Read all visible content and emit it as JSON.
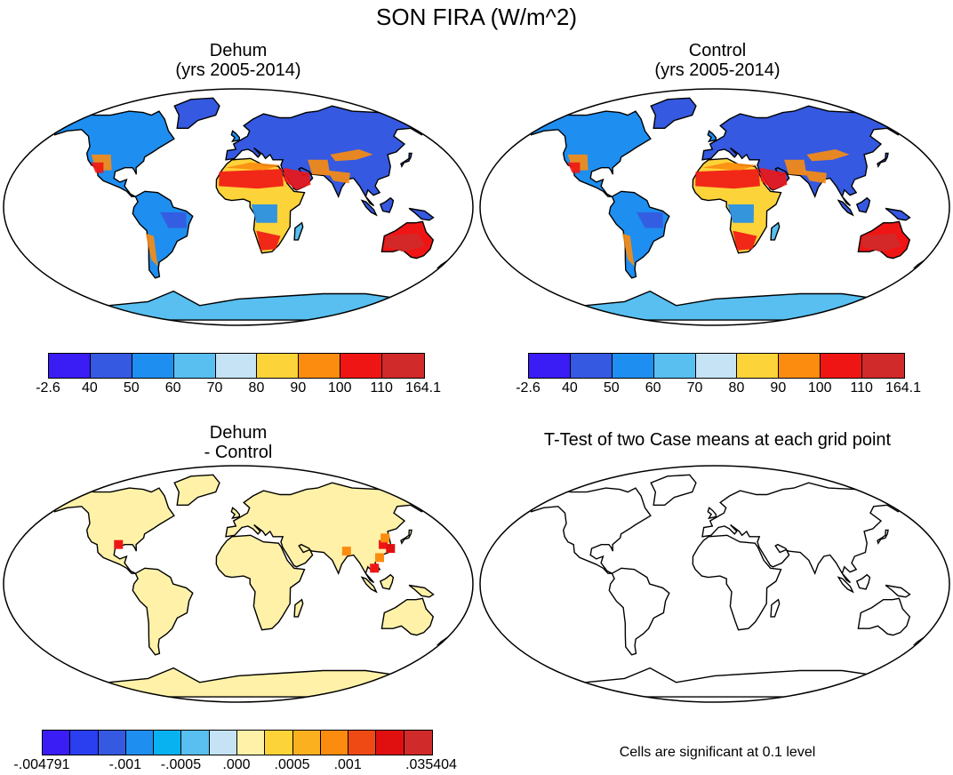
{
  "title": "SON FIRA (W/m^2)",
  "panels": {
    "top_left": {
      "line1": "Dehum",
      "line2": "(yrs 2005-2014)"
    },
    "top_right": {
      "line1": "Control",
      "line2": "(yrs 2005-2014)"
    },
    "bottom_left": {
      "line1": "Dehum",
      "line2": "- Control"
    },
    "bottom_right": {
      "line1": "T-Test of two Case means at each grid point"
    }
  },
  "colorbar_main": {
    "colors": [
      "#3a1cf4",
      "#3559e0",
      "#1e8ef0",
      "#58bff0",
      "#c6e3f5",
      "#fdd33a",
      "#fb8c10",
      "#f01515",
      "#d02a2a"
    ],
    "labels": [
      "-2.6",
      "40",
      "50",
      "60",
      "70",
      "80",
      "90",
      "100",
      "110",
      "164.1"
    ]
  },
  "colorbar_diff": {
    "colors": [
      "#3a1cf4",
      "#2a3ff0",
      "#3559e0",
      "#1e8ef0",
      "#08b2f0",
      "#58bff0",
      "#c6e3f5",
      "#fff2a8",
      "#fdd33a",
      "#fbb020",
      "#fb8c10",
      "#f04a14",
      "#e01010",
      "#d02a2a"
    ],
    "labels": [
      ".004791",
      ".001",
      ".0005",
      ".000",
      ".0005",
      ".001",
      ".035404"
    ],
    "label_prefix_negative": [
      true,
      true,
      true,
      false,
      false,
      false,
      false
    ]
  },
  "ttest_note": "Cells are significant at 0.1 level"
}
